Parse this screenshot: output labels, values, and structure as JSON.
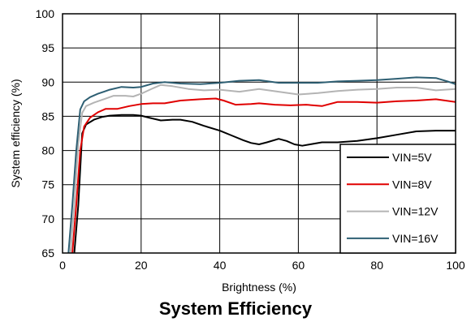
{
  "chart_data": {
    "type": "line",
    "title": "System Efficiency",
    "xlabel": "Brightness (%)",
    "ylabel": "System efficiency (%)",
    "xlim": [
      0,
      100
    ],
    "ylim": [
      65,
      100
    ],
    "xticks": [
      0,
      20,
      40,
      60,
      80,
      100
    ],
    "yticks": [
      65,
      70,
      75,
      80,
      85,
      90,
      95,
      100
    ],
    "grid": true,
    "legend_position": "bottom-right",
    "series": [
      {
        "name": "VIN=5V",
        "color": "#000000",
        "points": [
          [
            3,
            65
          ],
          [
            4,
            72
          ],
          [
            5,
            82.5
          ],
          [
            6,
            83.8
          ],
          [
            8,
            84.5
          ],
          [
            10,
            84.9
          ],
          [
            12,
            85.1
          ],
          [
            15,
            85.2
          ],
          [
            18,
            85.2
          ],
          [
            20,
            85.1
          ],
          [
            22,
            84.8
          ],
          [
            25,
            84.4
          ],
          [
            28,
            84.5
          ],
          [
            30,
            84.5
          ],
          [
            33,
            84.2
          ],
          [
            36,
            83.6
          ],
          [
            40,
            82.9
          ],
          [
            43,
            82.2
          ],
          [
            46,
            81.5
          ],
          [
            48,
            81.1
          ],
          [
            50,
            80.9
          ],
          [
            52,
            81.2
          ],
          [
            55,
            81.7
          ],
          [
            57,
            81.4
          ],
          [
            59,
            80.9
          ],
          [
            61,
            80.7
          ],
          [
            63,
            80.9
          ],
          [
            66,
            81.2
          ],
          [
            70,
            81.2
          ],
          [
            75,
            81.4
          ],
          [
            80,
            81.8
          ],
          [
            85,
            82.3
          ],
          [
            90,
            82.8
          ],
          [
            95,
            82.9
          ],
          [
            100,
            82.9
          ]
        ]
      },
      {
        "name": "VIN=8V",
        "color": "#e00000",
        "points": [
          [
            2.5,
            65
          ],
          [
            3.5,
            72
          ],
          [
            4.5,
            80
          ],
          [
            5.5,
            83.5
          ],
          [
            7,
            84.8
          ],
          [
            9,
            85.6
          ],
          [
            11,
            86.1
          ],
          [
            14,
            86.1
          ],
          [
            17,
            86.5
          ],
          [
            20,
            86.8
          ],
          [
            23,
            86.9
          ],
          [
            26,
            86.9
          ],
          [
            30,
            87.3
          ],
          [
            35,
            87.5
          ],
          [
            39,
            87.6
          ],
          [
            41,
            87.3
          ],
          [
            44,
            86.7
          ],
          [
            48,
            86.8
          ],
          [
            50,
            86.9
          ],
          [
            54,
            86.7
          ],
          [
            58,
            86.6
          ],
          [
            62,
            86.7
          ],
          [
            66,
            86.5
          ],
          [
            70,
            87.1
          ],
          [
            75,
            87.1
          ],
          [
            80,
            87.0
          ],
          [
            85,
            87.2
          ],
          [
            90,
            87.3
          ],
          [
            95,
            87.5
          ],
          [
            100,
            87.1
          ]
        ]
      },
      {
        "name": "VIN=12V",
        "color": "#b4b4b4",
        "points": [
          [
            2,
            65
          ],
          [
            3,
            72
          ],
          [
            4,
            81
          ],
          [
            5,
            85.5
          ],
          [
            6,
            86.5
          ],
          [
            8,
            87
          ],
          [
            10,
            87.4
          ],
          [
            13,
            88
          ],
          [
            16,
            88
          ],
          [
            18,
            87.9
          ],
          [
            20,
            88.3
          ],
          [
            23,
            89.1
          ],
          [
            25,
            89.6
          ],
          [
            28,
            89.4
          ],
          [
            32,
            89.0
          ],
          [
            36,
            88.8
          ],
          [
            40,
            88.9
          ],
          [
            45,
            88.6
          ],
          [
            50,
            89.0
          ],
          [
            55,
            88.6
          ],
          [
            60,
            88.2
          ],
          [
            65,
            88.4
          ],
          [
            70,
            88.7
          ],
          [
            75,
            88.9
          ],
          [
            80,
            89.0
          ],
          [
            85,
            89.2
          ],
          [
            90,
            89.2
          ],
          [
            95,
            88.8
          ],
          [
            100,
            89.0
          ]
        ]
      },
      {
        "name": "VIN=16V",
        "color": "#2e5f73",
        "points": [
          [
            1.5,
            65
          ],
          [
            2.5,
            72
          ],
          [
            3.5,
            80
          ],
          [
            4.5,
            86
          ],
          [
            5.5,
            87.2
          ],
          [
            7,
            87.8
          ],
          [
            9,
            88.3
          ],
          [
            12,
            88.9
          ],
          [
            15,
            89.3
          ],
          [
            18,
            89.2
          ],
          [
            20,
            89.3
          ],
          [
            23,
            89.8
          ],
          [
            26,
            90.0
          ],
          [
            30,
            89.8
          ],
          [
            35,
            89.7
          ],
          [
            40,
            89.9
          ],
          [
            45,
            90.2
          ],
          [
            50,
            90.3
          ],
          [
            55,
            89.9
          ],
          [
            60,
            89.9
          ],
          [
            65,
            89.9
          ],
          [
            70,
            90.1
          ],
          [
            75,
            90.2
          ],
          [
            80,
            90.3
          ],
          [
            85,
            90.5
          ],
          [
            90,
            90.7
          ],
          [
            95,
            90.6
          ],
          [
            98,
            90.1
          ],
          [
            100,
            89.7
          ]
        ]
      }
    ]
  }
}
